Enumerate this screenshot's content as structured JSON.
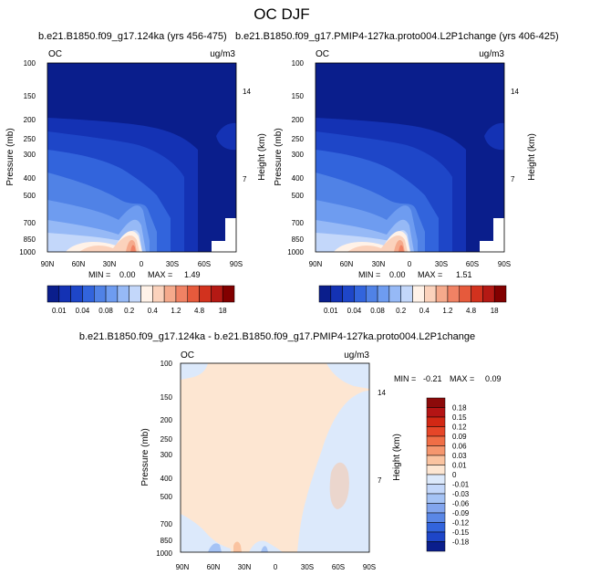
{
  "page_title": "OC DJF",
  "chart_data": [
    {
      "type": "contour",
      "title": "b.e21.B1850.f09_g17.124ka (yrs 456-475)",
      "variable": "OC",
      "units": "ug/m3",
      "ylabel_left": "Pressure (mb)",
      "ylabel_right": "Height (km)",
      "x_ticks": [
        "90N",
        "60N",
        "30N",
        "0",
        "30S",
        "60S",
        "90S"
      ],
      "y_ticks": [
        "100",
        "150",
        "200",
        "250",
        "300",
        "400",
        "500",
        "700",
        "850",
        "1000"
      ],
      "y_ticks_right": [
        "14",
        "7"
      ],
      "min_label": "MIN =",
      "min_value": "0.00",
      "max_label": "MAX =",
      "max_value": "1.49",
      "colorbar_labels": [
        "0.01",
        "0.04",
        "0.08",
        "0.2",
        "0.4",
        "1.2",
        "4.8",
        "18"
      ],
      "colorbar_colors": [
        "#0a1e8c",
        "#1432b4",
        "#1e46c8",
        "#3264dc",
        "#5082e6",
        "#6e9cf0",
        "#96b9f6",
        "#c3d7fa",
        "#fff2e8",
        "#fbd2bc",
        "#f5aa8c",
        "#f08264",
        "#e65a3c",
        "#d2321e",
        "#b41914",
        "#820000"
      ]
    },
    {
      "type": "contour",
      "title": "b.e21.B1850.f09_g17.PMIP4-127ka.proto004.L2P1change (yrs 406-425)",
      "variable": "OC",
      "units": "ug/m3",
      "ylabel_left": "Pressure (mb)",
      "ylabel_right": "Height (km)",
      "x_ticks": [
        "90N",
        "60N",
        "30N",
        "0",
        "30S",
        "60S",
        "90S"
      ],
      "y_ticks": [
        "100",
        "150",
        "200",
        "250",
        "300",
        "400",
        "500",
        "700",
        "850",
        "1000"
      ],
      "y_ticks_right": [
        "14",
        "7"
      ],
      "min_label": "MIN =",
      "min_value": "0.00",
      "max_label": "MAX =",
      "max_value": "1.51",
      "colorbar_labels": [
        "0.01",
        "0.04",
        "0.08",
        "0.2",
        "0.4",
        "1.2",
        "4.8",
        "18"
      ],
      "colorbar_colors": [
        "#0a1e8c",
        "#1432b4",
        "#1e46c8",
        "#3264dc",
        "#5082e6",
        "#6e9cf0",
        "#96b9f6",
        "#c3d7fa",
        "#fff2e8",
        "#fbd2bc",
        "#f5aa8c",
        "#f08264",
        "#e65a3c",
        "#d2321e",
        "#b41914",
        "#820000"
      ]
    },
    {
      "type": "contour",
      "title": "b.e21.B1850.f09_g17.124ka - b.e21.B1850.f09_g17.PMIP4-127ka.proto004.L2P1change",
      "variable": "OC",
      "units": "ug/m3",
      "ylabel_left": "Pressure (mb)",
      "ylabel_right": "Height (km)",
      "x_ticks": [
        "90N",
        "60N",
        "30N",
        "0",
        "30S",
        "60S",
        "90S"
      ],
      "y_ticks": [
        "100",
        "150",
        "200",
        "250",
        "300",
        "400",
        "500",
        "700",
        "850",
        "1000"
      ],
      "y_ticks_right": [
        "14",
        "7"
      ],
      "min_label": "MIN =",
      "min_value": "-0.21",
      "max_label": "MAX =",
      "max_value": "0.09",
      "colorbar_labels": [
        "0.18",
        "0.15",
        "0.12",
        "0.09",
        "0.06",
        "0.03",
        "0.01",
        "0",
        "-0.01",
        "-0.03",
        "-0.06",
        "-0.09",
        "-0.12",
        "-0.15",
        "-0.18"
      ],
      "colorbar_colors": [
        "#8c0a0a",
        "#b41414",
        "#d22814",
        "#e64628",
        "#f06e46",
        "#f5966e",
        "#fac3a0",
        "#fde6d2",
        "#dce9fb",
        "#c3d7fa",
        "#a5c3f5",
        "#82a5ee",
        "#5a87e6",
        "#3264dc",
        "#1e46c8",
        "#0a1e8c"
      ]
    }
  ]
}
